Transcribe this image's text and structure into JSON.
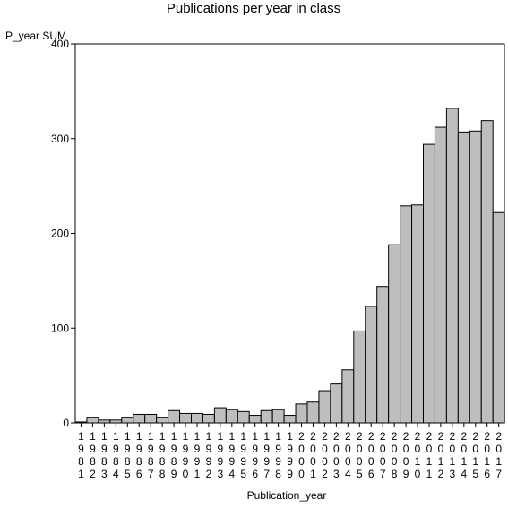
{
  "chart_data": {
    "type": "bar",
    "title": "Publications per year in class",
    "ylabel": "P_year SUM",
    "xlabel": "Publication_year",
    "ylim": [
      0,
      400
    ],
    "yticks": [
      0,
      100,
      200,
      300,
      400
    ],
    "grid": false,
    "categories": [
      "1981",
      "1982",
      "1983",
      "1984",
      "1985",
      "1986",
      "1987",
      "1988",
      "1989",
      "1990",
      "1991",
      "1992",
      "1993",
      "1994",
      "1995",
      "1996",
      "1997",
      "1998",
      "1999",
      "2000",
      "2001",
      "2002",
      "2003",
      "2004",
      "2005",
      "2006",
      "2007",
      "2008",
      "2009",
      "2010",
      "2011",
      "2012",
      "2013",
      "2014",
      "2015",
      "2016",
      "2017"
    ],
    "values": [
      1,
      6,
      3,
      3,
      6,
      9,
      9,
      6,
      13,
      10,
      10,
      9,
      16,
      14,
      12,
      8,
      13,
      14,
      8,
      20,
      22,
      34,
      41,
      56,
      97,
      123,
      144,
      188,
      229,
      230,
      294,
      312,
      332,
      307,
      308,
      319,
      222
    ],
    "colors": {
      "bar_fill": "#bebebe",
      "bar_stroke": "#000000"
    }
  }
}
